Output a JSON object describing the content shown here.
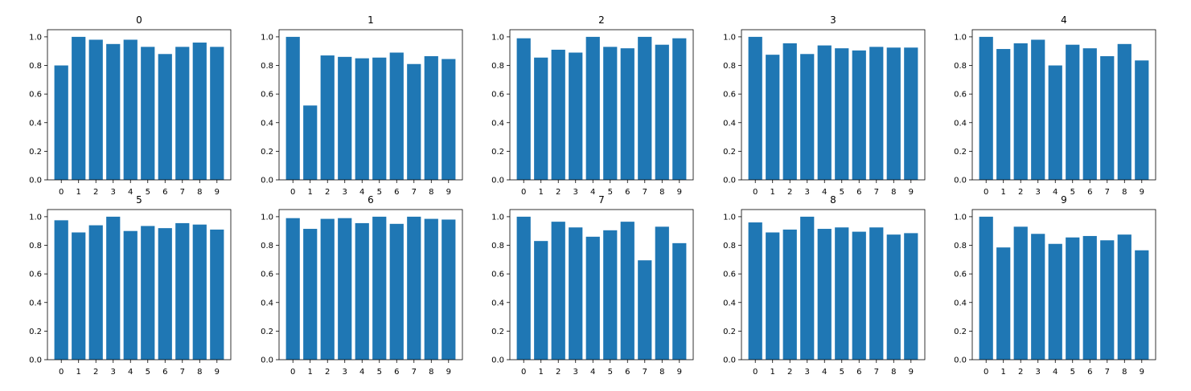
{
  "figure": {
    "bar_color": "#1f77b4",
    "background": "#ffffff"
  },
  "chart_data": [
    {
      "type": "bar",
      "title": "0",
      "categories": [
        "0",
        "1",
        "2",
        "3",
        "4",
        "5",
        "6",
        "7",
        "8",
        "9"
      ],
      "values": [
        0.8,
        1.0,
        0.98,
        0.95,
        0.98,
        0.93,
        0.88,
        0.93,
        0.96,
        0.93
      ],
      "ylim": [
        0,
        1.05
      ],
      "yticks": [
        "0.0",
        "0.2",
        "0.4",
        "0.6",
        "0.8",
        "1.0"
      ],
      "grid": false
    },
    {
      "type": "bar",
      "title": "1",
      "categories": [
        "0",
        "1",
        "2",
        "3",
        "4",
        "5",
        "6",
        "7",
        "8",
        "9"
      ],
      "values": [
        1.0,
        0.52,
        0.87,
        0.86,
        0.85,
        0.855,
        0.89,
        0.81,
        0.865,
        0.845
      ],
      "ylim": [
        0,
        1.05
      ],
      "yticks": [
        "0.0",
        "0.2",
        "0.4",
        "0.6",
        "0.8",
        "1.0"
      ],
      "grid": false
    },
    {
      "type": "bar",
      "title": "2",
      "categories": [
        "0",
        "1",
        "2",
        "3",
        "4",
        "5",
        "6",
        "7",
        "8",
        "9"
      ],
      "values": [
        0.99,
        0.855,
        0.91,
        0.89,
        1.0,
        0.93,
        0.92,
        1.0,
        0.945,
        0.99
      ],
      "ylim": [
        0,
        1.05
      ],
      "yticks": [
        "0.0",
        "0.2",
        "0.4",
        "0.6",
        "0.8",
        "1.0"
      ],
      "grid": false
    },
    {
      "type": "bar",
      "title": "3",
      "categories": [
        "0",
        "1",
        "2",
        "3",
        "4",
        "5",
        "6",
        "7",
        "8",
        "9"
      ],
      "values": [
        1.0,
        0.875,
        0.955,
        0.88,
        0.94,
        0.92,
        0.905,
        0.93,
        0.925,
        0.925
      ],
      "ylim": [
        0,
        1.05
      ],
      "yticks": [
        "0.0",
        "0.2",
        "0.4",
        "0.6",
        "0.8",
        "1.0"
      ],
      "grid": false
    },
    {
      "type": "bar",
      "title": "4",
      "categories": [
        "0",
        "1",
        "2",
        "3",
        "4",
        "5",
        "6",
        "7",
        "8",
        "9"
      ],
      "values": [
        1.0,
        0.915,
        0.955,
        0.98,
        0.8,
        0.945,
        0.92,
        0.865,
        0.95,
        0.835
      ],
      "ylim": [
        0,
        1.05
      ],
      "yticks": [
        "0.0",
        "0.2",
        "0.4",
        "0.6",
        "0.8",
        "1.0"
      ],
      "grid": false
    },
    {
      "type": "bar",
      "title": "5",
      "categories": [
        "0",
        "1",
        "2",
        "3",
        "4",
        "5",
        "6",
        "7",
        "8",
        "9"
      ],
      "values": [
        0.975,
        0.89,
        0.94,
        1.0,
        0.9,
        0.935,
        0.92,
        0.955,
        0.945,
        0.91
      ],
      "ylim": [
        0,
        1.05
      ],
      "yticks": [
        "0.0",
        "0.2",
        "0.4",
        "0.6",
        "0.8",
        "1.0"
      ],
      "grid": false
    },
    {
      "type": "bar",
      "title": "6",
      "categories": [
        "0",
        "1",
        "2",
        "3",
        "4",
        "5",
        "6",
        "7",
        "8",
        "9"
      ],
      "values": [
        0.99,
        0.915,
        0.985,
        0.99,
        0.955,
        1.0,
        0.95,
        1.0,
        0.985,
        0.98
      ],
      "ylim": [
        0,
        1.05
      ],
      "yticks": [
        "0.0",
        "0.2",
        "0.4",
        "0.6",
        "0.8",
        "1.0"
      ],
      "grid": false
    },
    {
      "type": "bar",
      "title": "7",
      "categories": [
        "0",
        "1",
        "2",
        "3",
        "4",
        "5",
        "6",
        "7",
        "8",
        "9"
      ],
      "values": [
        1.0,
        0.83,
        0.965,
        0.925,
        0.86,
        0.905,
        0.965,
        0.695,
        0.93,
        0.815
      ],
      "ylim": [
        0,
        1.05
      ],
      "yticks": [
        "0.0",
        "0.2",
        "0.4",
        "0.6",
        "0.8",
        "1.0"
      ],
      "grid": false
    },
    {
      "type": "bar",
      "title": "8",
      "categories": [
        "0",
        "1",
        "2",
        "3",
        "4",
        "5",
        "6",
        "7",
        "8",
        "9"
      ],
      "values": [
        0.96,
        0.89,
        0.91,
        1.0,
        0.915,
        0.925,
        0.895,
        0.925,
        0.875,
        0.885
      ],
      "ylim": [
        0,
        1.05
      ],
      "yticks": [
        "0.0",
        "0.2",
        "0.4",
        "0.6",
        "0.8",
        "1.0"
      ],
      "grid": false
    },
    {
      "type": "bar",
      "title": "9",
      "categories": [
        "0",
        "1",
        "2",
        "3",
        "4",
        "5",
        "6",
        "7",
        "8",
        "9"
      ],
      "values": [
        1.0,
        0.785,
        0.93,
        0.88,
        0.81,
        0.855,
        0.865,
        0.835,
        0.875,
        0.765
      ],
      "ylim": [
        0,
        1.05
      ],
      "yticks": [
        "0.0",
        "0.2",
        "0.4",
        "0.6",
        "0.8",
        "1.0"
      ],
      "grid": false
    }
  ]
}
